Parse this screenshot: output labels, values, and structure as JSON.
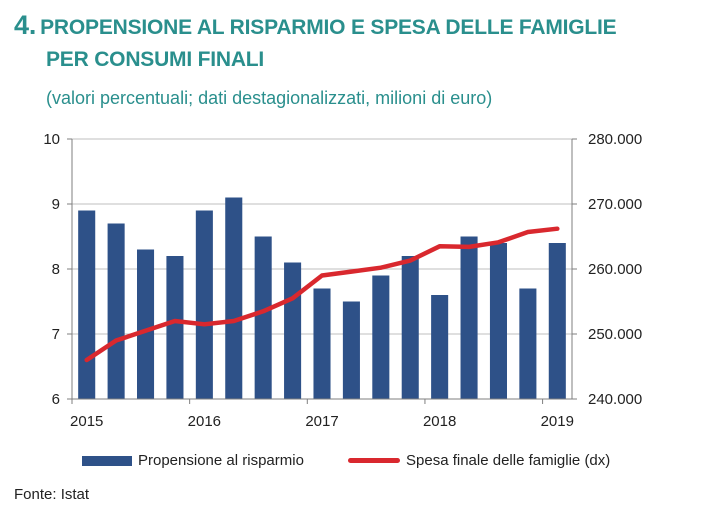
{
  "header": {
    "number": "4.",
    "title_line1": "PROPENSIONE AL RISPARMIO E SPESA DELLE FAMIGLIE",
    "title_line2": "PER CONSUMI FINALI",
    "subtitle": "(valori percentuali; dati destagionalizzati, milioni di euro)"
  },
  "source": "Fonte: Istat",
  "colors": {
    "title": "#2a8f8d",
    "bars": "#2e5188",
    "line": "#d9282e",
    "grid": "#bfbfbf"
  },
  "chart_data": {
    "type": "bar",
    "title": "PROPENSIONE AL RISPARMIO E SPESA DELLE FAMIGLIE PER CONSUMI FINALI",
    "subtitle": "(valori percentuali; dati destagionalizzati, milioni di euro)",
    "x": [
      "2015-Q1",
      "2015-Q2",
      "2015-Q3",
      "2015-Q4",
      "2016-Q1",
      "2016-Q2",
      "2016-Q3",
      "2016-Q4",
      "2017-Q1",
      "2017-Q2",
      "2017-Q3",
      "2017-Q4",
      "2018-Q1",
      "2018-Q2",
      "2018-Q3",
      "2018-Q4",
      "2019-Q1"
    ],
    "x_tick_labels": [
      "2015",
      "2016",
      "2017",
      "2018",
      "2019"
    ],
    "series": [
      {
        "name": "Propensione al risparmio",
        "type": "bar",
        "axis": "left",
        "values": [
          8.9,
          8.7,
          8.3,
          8.2,
          8.9,
          9.1,
          8.5,
          8.1,
          7.7,
          7.5,
          7.9,
          8.2,
          7.6,
          8.5,
          8.4,
          7.7,
          8.4
        ]
      },
      {
        "name": "Spesa finale delle famiglie (dx)",
        "type": "line",
        "axis": "right",
        "values": [
          246000,
          249000,
          250500,
          252000,
          251500,
          252000,
          253500,
          255500,
          259000,
          259600,
          260200,
          261300,
          263500,
          263400,
          264100,
          265700,
          266200
        ]
      }
    ],
    "y_left": {
      "ylim": [
        6,
        10
      ],
      "ticks": [
        "6",
        "7",
        "8",
        "9",
        "10"
      ]
    },
    "y_right": {
      "ylim": [
        240000,
        280000
      ],
      "ticks": [
        "240.000",
        "250.000",
        "260.000",
        "270.000",
        "280.000"
      ]
    },
    "grid": true,
    "legend": "bottom"
  }
}
